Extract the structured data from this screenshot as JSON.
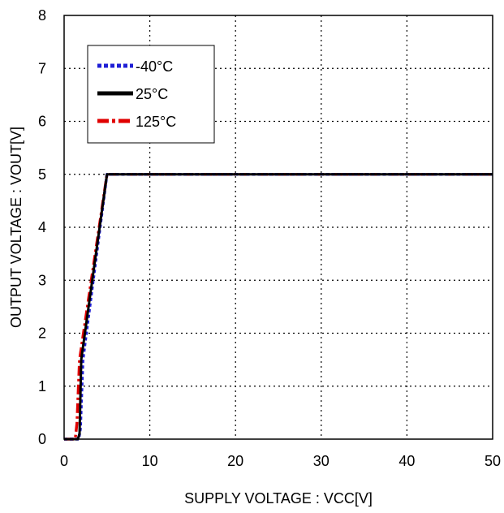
{
  "chart_data": {
    "type": "line",
    "title": "",
    "xlabel": "SUPPLY VOLTAGE : VCC[V]",
    "ylabel": "OUTPUT VOLTAGE : VOUT[V]",
    "xlim": [
      0,
      50
    ],
    "ylim": [
      0,
      8
    ],
    "xticks": [
      0,
      10,
      20,
      30,
      40,
      50
    ],
    "yticks": [
      0,
      1,
      2,
      3,
      4,
      5,
      6,
      7,
      8
    ],
    "grid": true,
    "legend_position": "top-left",
    "series": [
      {
        "name": "-40°C",
        "color": "#1f1fd6",
        "style": "dotted",
        "x": [
          0,
          1.7,
          1.9,
          2.2,
          5.0,
          50
        ],
        "y": [
          0,
          0,
          0.2,
          1.5,
          5.0,
          5.0
        ]
      },
      {
        "name": "25°C",
        "color": "#000000",
        "style": "solid",
        "x": [
          0,
          1.6,
          1.8,
          2.0,
          5.0,
          50
        ],
        "y": [
          0,
          0,
          0.1,
          1.5,
          5.0,
          5.0
        ]
      },
      {
        "name": "125°C",
        "color": "#e00000",
        "style": "dash-dot",
        "x": [
          0,
          1.3,
          1.5,
          1.8,
          5.0,
          50
        ],
        "y": [
          0,
          0,
          0.3,
          1.5,
          5.0,
          5.0
        ]
      }
    ]
  }
}
